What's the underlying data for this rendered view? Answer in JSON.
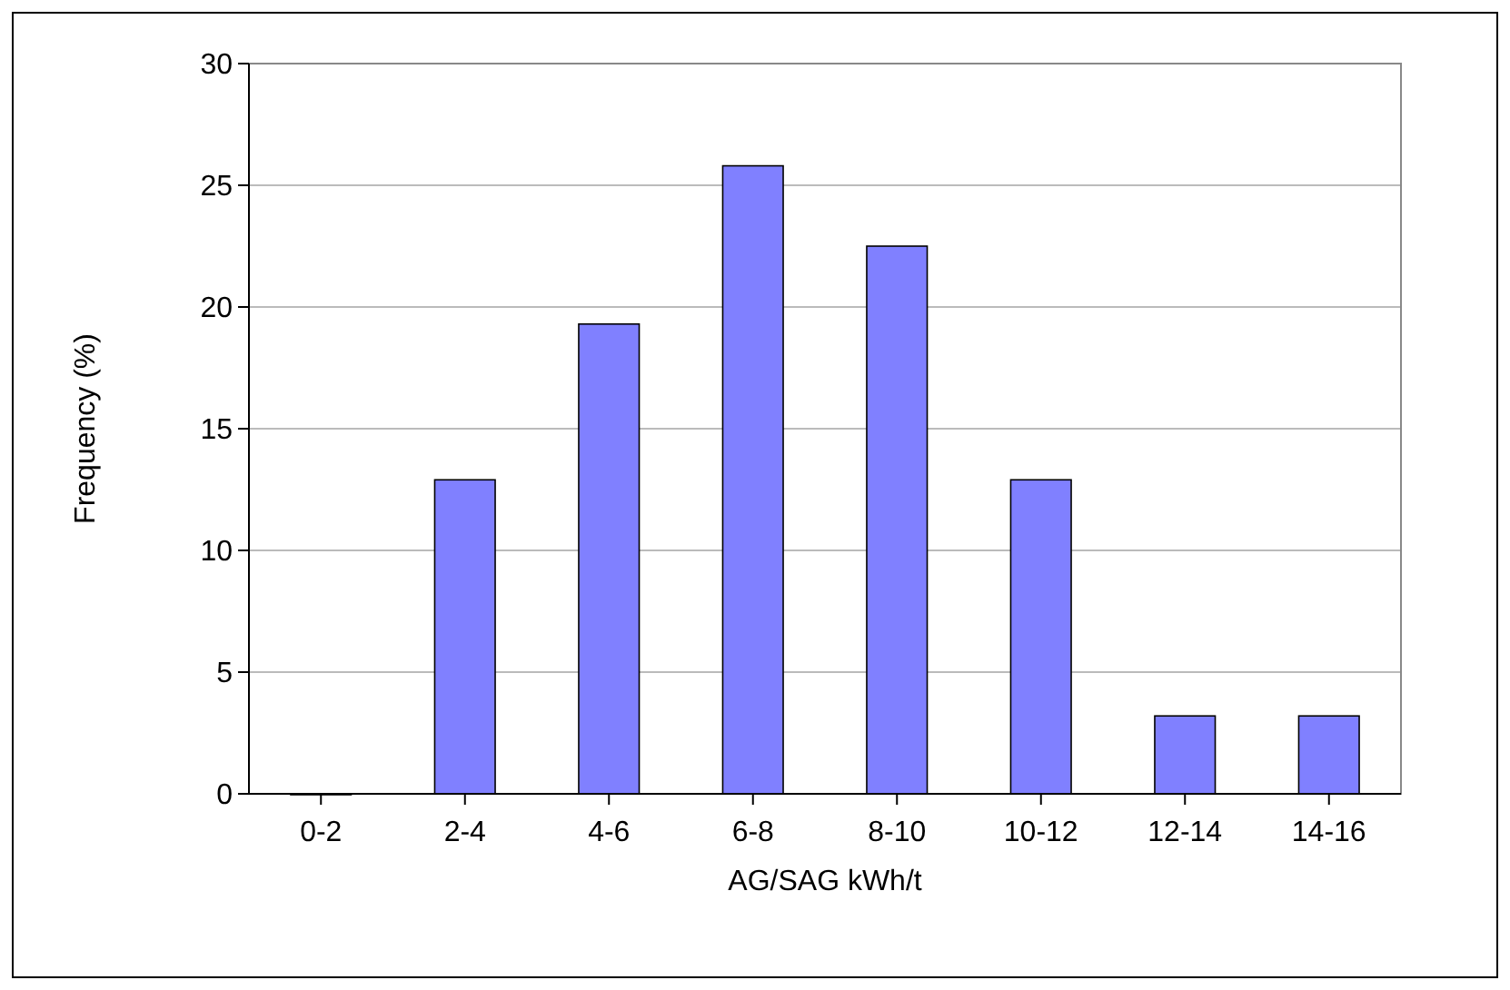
{
  "chart_data": {
    "type": "bar",
    "xlabel": "AG/SAG kWh/t",
    "ylabel": "Frequency (%)",
    "categories": [
      "0-2",
      "2-4",
      "4-6",
      "6-8",
      "8-10",
      "10-12",
      "12-14",
      "14-16"
    ],
    "values": [
      0,
      12.9,
      19.3,
      25.8,
      22.5,
      12.9,
      3.2,
      3.2
    ],
    "color": "#8080ff",
    "ylim": [
      0,
      30
    ],
    "yticks": [
      0,
      5,
      10,
      15,
      20,
      25,
      30
    ],
    "grid": "y"
  }
}
